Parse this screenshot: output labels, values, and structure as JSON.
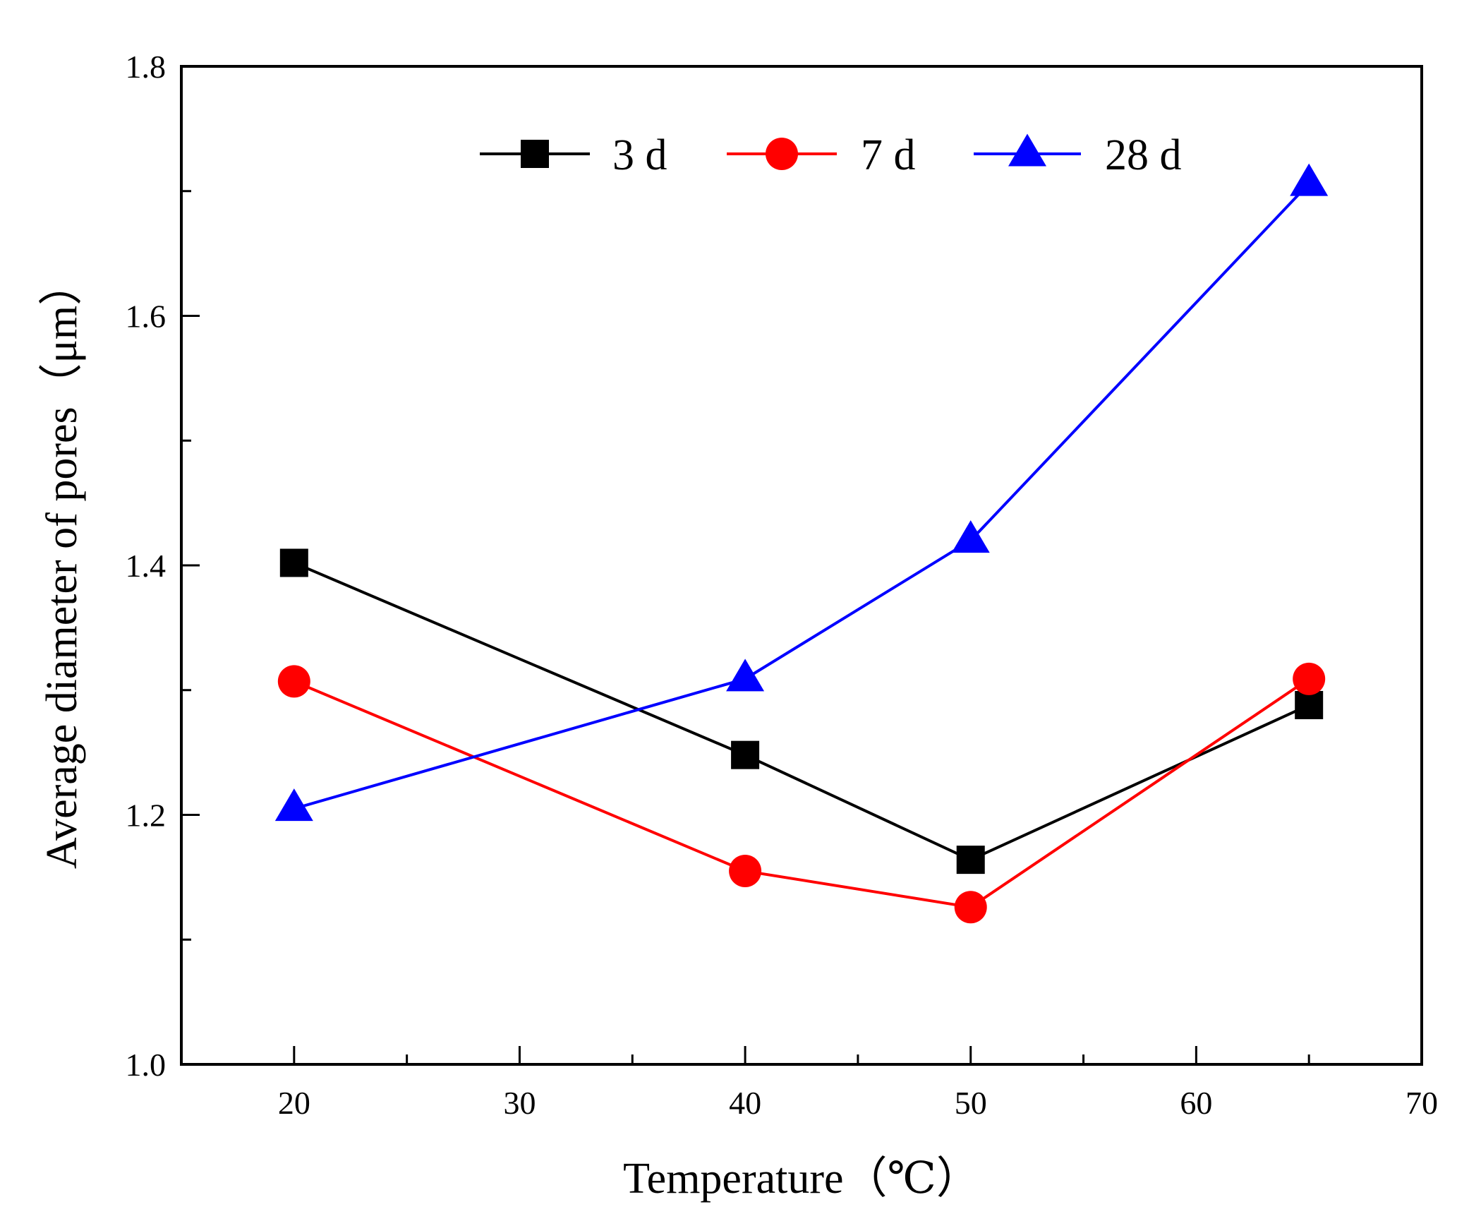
{
  "chart_data": {
    "type": "line",
    "title": "",
    "xlabel": "Temperature（℃）",
    "ylabel": "Average diameter of pores（μm）",
    "xlim": [
      15,
      70
    ],
    "ylim": [
      1.0,
      1.8
    ],
    "x_ticks": [
      20,
      30,
      40,
      50,
      60,
      70
    ],
    "x_tick_labels": [
      "20",
      "30",
      "40",
      "50",
      "60",
      "70"
    ],
    "y_ticks": [
      1.0,
      1.2,
      1.4,
      1.6,
      1.8
    ],
    "y_tick_labels": [
      "1.0",
      "1.2",
      "1.4",
      "1.6",
      "1.8"
    ],
    "y_minor_ticks": [
      1.1,
      1.3,
      1.5,
      1.7
    ],
    "x_minor_ticks": [
      25,
      35,
      45,
      55,
      65
    ],
    "grid": false,
    "legend_position": "top",
    "series": [
      {
        "name": "3 d",
        "color": "#000000",
        "marker": "square",
        "x": [
          20,
          40,
          50,
          65
        ],
        "values": [
          1.402,
          1.248,
          1.164,
          1.288
        ]
      },
      {
        "name": "7 d",
        "color": "#ff0000",
        "marker": "circle",
        "x": [
          20,
          40,
          50,
          65
        ],
        "values": [
          1.307,
          1.155,
          1.126,
          1.309
        ]
      },
      {
        "name": "28 d",
        "color": "#0000ff",
        "marker": "triangle",
        "x": [
          20,
          40,
          50,
          65
        ],
        "values": [
          1.205,
          1.309,
          1.42,
          1.706
        ]
      }
    ]
  }
}
